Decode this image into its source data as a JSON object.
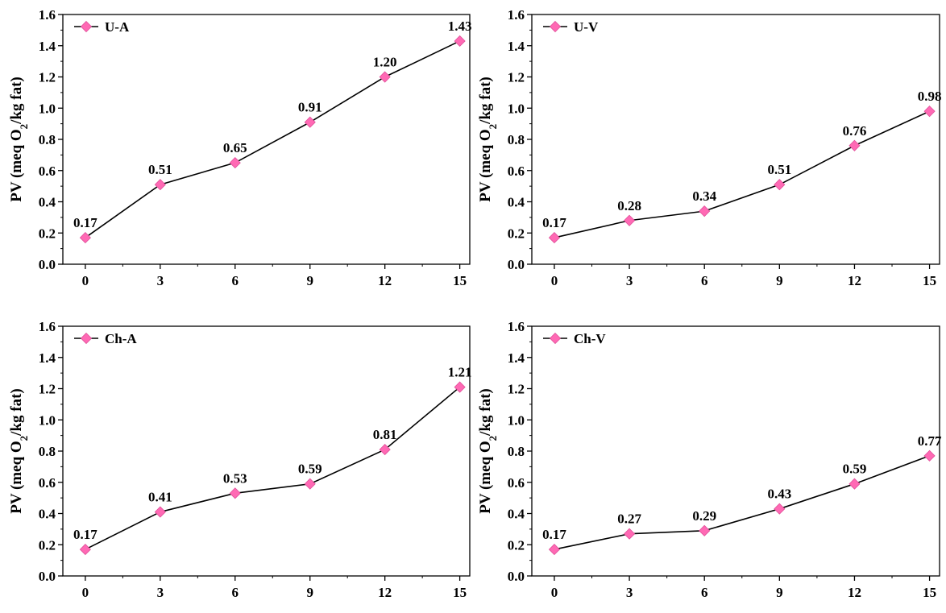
{
  "chart_data": [
    {
      "type": "line",
      "ylabel_main": "PV (meq O",
      "ylabel_sub": "2",
      "ylabel_tail": "/kg fat)",
      "xlabel": "",
      "x": [
        0,
        3,
        6,
        9,
        12,
        15
      ],
      "xticks": [
        "0",
        "3",
        "6",
        "9",
        "12",
        "15"
      ],
      "yticks": [
        "0.0",
        "0.2",
        "0.4",
        "0.6",
        "0.8",
        "1.0",
        "1.2",
        "1.4",
        "1.6"
      ],
      "ylim": [
        0,
        1.6
      ],
      "xlim": [
        -0.9,
        15.4
      ],
      "legend_position": "top-left",
      "series": [
        {
          "name": "U-A",
          "values": [
            0.17,
            0.51,
            0.65,
            0.91,
            1.2,
            1.43
          ],
          "labels": [
            "0.17",
            "0.51",
            "0.65",
            "0.91",
            "1.20",
            "1.43"
          ]
        }
      ]
    },
    {
      "type": "line",
      "ylabel_main": "PV (meq O",
      "ylabel_sub": "2",
      "ylabel_tail": "/kg fat)",
      "xlabel": "",
      "x": [
        0,
        3,
        6,
        9,
        12,
        15
      ],
      "xticks": [
        "0",
        "3",
        "6",
        "9",
        "12",
        "15"
      ],
      "yticks": [
        "0.0",
        "0.2",
        "0.4",
        "0.6",
        "0.8",
        "1.0",
        "1.2",
        "1.4",
        "1.6"
      ],
      "ylim": [
        0,
        1.6
      ],
      "xlim": [
        -0.9,
        15.4
      ],
      "legend_position": "top-left",
      "series": [
        {
          "name": "U-V",
          "values": [
            0.17,
            0.28,
            0.34,
            0.51,
            0.76,
            0.98
          ],
          "labels": [
            "0.17",
            "0.28",
            "0.34",
            "0.51",
            "0.76",
            "0.98"
          ]
        }
      ]
    },
    {
      "type": "line",
      "ylabel_main": "PV (meq O",
      "ylabel_sub": "2",
      "ylabel_tail": "/kg fat)",
      "xlabel": "",
      "x": [
        0,
        3,
        6,
        9,
        12,
        15
      ],
      "xticks": [
        "0",
        "3",
        "6",
        "9",
        "12",
        "15"
      ],
      "yticks": [
        "0.0",
        "0.2",
        "0.4",
        "0.6",
        "0.8",
        "1.0",
        "1.2",
        "1.4",
        "1.6"
      ],
      "ylim": [
        0,
        1.6
      ],
      "xlim": [
        -0.9,
        15.4
      ],
      "legend_position": "top-left",
      "series": [
        {
          "name": "Ch-A",
          "values": [
            0.17,
            0.41,
            0.53,
            0.59,
            0.81,
            1.21
          ],
          "labels": [
            "0.17",
            "0.41",
            "0.53",
            "0.59",
            "0.81",
            "1.21"
          ]
        }
      ]
    },
    {
      "type": "line",
      "ylabel_main": "PV (meq O",
      "ylabel_sub": "2",
      "ylabel_tail": "/kg fat)",
      "xlabel": "",
      "x": [
        0,
        3,
        6,
        9,
        12,
        15
      ],
      "xticks": [
        "0",
        "3",
        "6",
        "9",
        "12",
        "15"
      ],
      "yticks": [
        "0.0",
        "0.2",
        "0.4",
        "0.6",
        "0.8",
        "1.0",
        "1.2",
        "1.4",
        "1.6"
      ],
      "ylim": [
        0,
        1.6
      ],
      "xlim": [
        -0.9,
        15.4
      ],
      "legend_position": "top-left",
      "series": [
        {
          "name": "Ch-V",
          "values": [
            0.17,
            0.27,
            0.29,
            0.43,
            0.59,
            0.77
          ],
          "labels": [
            "0.17",
            "0.27",
            "0.29",
            "0.43",
            "0.59",
            "0.77"
          ]
        }
      ]
    }
  ],
  "colors": {
    "marker": "#ff69b4",
    "marker_stroke": "#e0509a",
    "line": "#000000",
    "axis": "#000000"
  }
}
